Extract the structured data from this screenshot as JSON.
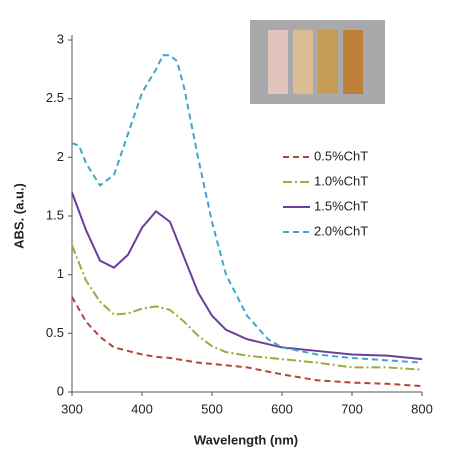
{
  "chart_data": {
    "type": "line",
    "x_label": "Wavelength (nm)",
    "y_label": "ABS. (a.u.)",
    "xlim": [
      300,
      800
    ],
    "xticks": [
      300,
      400,
      500,
      600,
      700,
      800
    ],
    "ylim": [
      0,
      3
    ],
    "yticks": [
      0,
      0.5,
      1,
      1.5,
      2,
      2.5,
      3
    ],
    "series": [
      {
        "name": "0.5%ChT",
        "color": "#b5443f",
        "dash": "dashed",
        "x": [
          300,
          320,
          340,
          360,
          380,
          400,
          420,
          440,
          460,
          480,
          500,
          550,
          600,
          650,
          700,
          750,
          800
        ],
        "values": [
          0.81,
          0.6,
          0.47,
          0.38,
          0.35,
          0.32,
          0.3,
          0.29,
          0.27,
          0.25,
          0.24,
          0.21,
          0.15,
          0.1,
          0.08,
          0.07,
          0.05
        ]
      },
      {
        "name": "1.0%ChT",
        "color": "#9bab3c",
        "dash": "dashdot",
        "x": [
          300,
          320,
          340,
          360,
          380,
          400,
          420,
          440,
          460,
          480,
          500,
          520,
          550,
          600,
          650,
          700,
          750,
          800
        ],
        "values": [
          1.25,
          0.95,
          0.77,
          0.66,
          0.67,
          0.71,
          0.73,
          0.7,
          0.6,
          0.48,
          0.39,
          0.34,
          0.31,
          0.28,
          0.25,
          0.21,
          0.21,
          0.19
        ]
      },
      {
        "name": "1.5%ChT",
        "color": "#6a3f99",
        "dash": "solid",
        "x": [
          300,
          320,
          340,
          360,
          380,
          400,
          420,
          440,
          460,
          480,
          500,
          520,
          550,
          600,
          650,
          700,
          750,
          800
        ],
        "values": [
          1.7,
          1.38,
          1.12,
          1.06,
          1.17,
          1.4,
          1.54,
          1.45,
          1.15,
          0.85,
          0.65,
          0.53,
          0.45,
          0.38,
          0.35,
          0.32,
          0.31,
          0.28
        ]
      },
      {
        "name": "2.0%ChT",
        "color": "#3ea6c9",
        "dash": "dashed",
        "x": [
          300,
          310,
          320,
          340,
          360,
          380,
          400,
          420,
          430,
          440,
          450,
          460,
          480,
          500,
          520,
          550,
          580,
          600,
          650,
          700,
          750,
          800
        ],
        "values": [
          2.12,
          2.1,
          1.95,
          1.76,
          1.85,
          2.2,
          2.55,
          2.75,
          2.87,
          2.87,
          2.82,
          2.6,
          2.0,
          1.45,
          1.0,
          0.65,
          0.45,
          0.38,
          0.32,
          0.29,
          0.27,
          0.25
        ]
      }
    ]
  }
}
